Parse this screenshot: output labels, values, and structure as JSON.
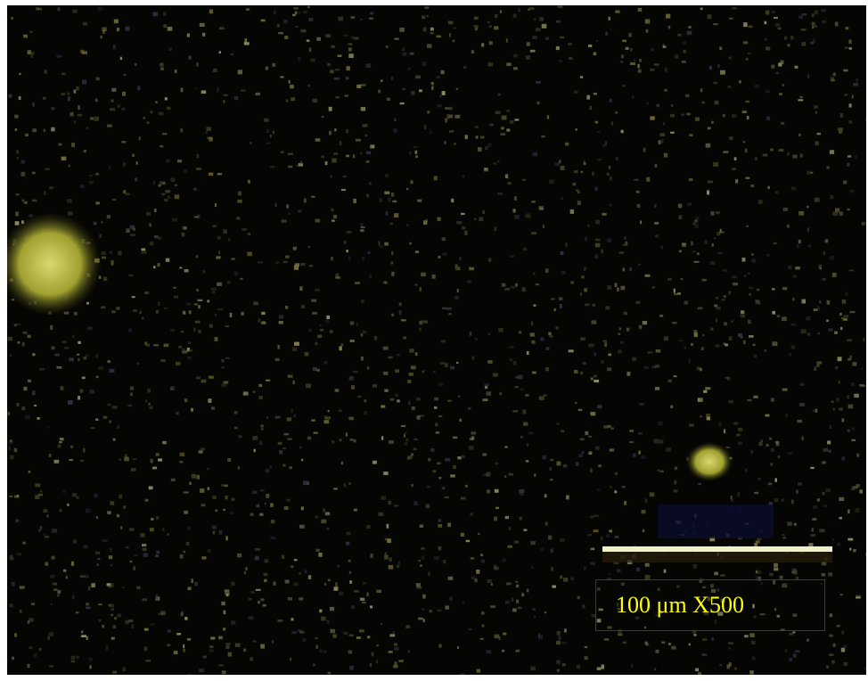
{
  "scale_bar": {
    "label": "100 μm X500"
  }
}
